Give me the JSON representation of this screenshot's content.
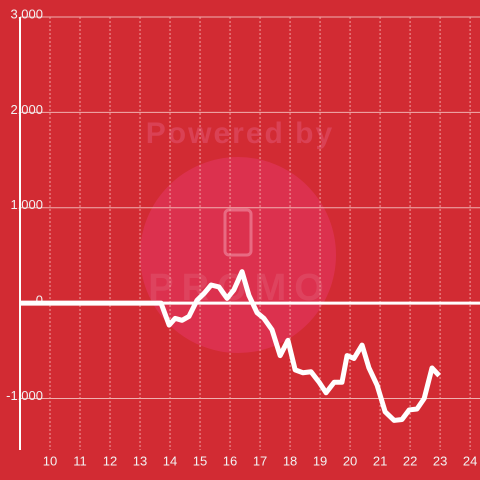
{
  "chart_data": {
    "type": "line",
    "watermark": "Powered by",
    "watermark_logo": "PROMO",
    "x": [
      9,
      13.7,
      13.97,
      14.17,
      14.4,
      14.63,
      14.9,
      15.13,
      15.37,
      15.63,
      15.9,
      16.13,
      16.4,
      16.63,
      16.9,
      17.13,
      17.4,
      17.67,
      17.93,
      18.17,
      18.43,
      18.7,
      18.97,
      19.2,
      19.47,
      19.73,
      19.9,
      20.13,
      20.4,
      20.63,
      20.9,
      21.17,
      21.47,
      21.73,
      21.97,
      22.23,
      22.47,
      22.73,
      22.97
    ],
    "values": [
      0,
      0,
      -230,
      -160,
      -180,
      -140,
      30,
      100,
      190,
      170,
      50,
      140,
      330,
      80,
      -100,
      -160,
      -280,
      -550,
      -390,
      -700,
      -730,
      -720,
      -830,
      -940,
      -830,
      -830,
      -550,
      -580,
      -440,
      -680,
      -860,
      -1140,
      -1230,
      -1220,
      -1120,
      -1110,
      -1000,
      -680,
      -760
    ],
    "color": "#ffffff",
    "xlim": [
      9,
      24.33
    ],
    "xticks": [
      10,
      11,
      12,
      13,
      14,
      15,
      16,
      17,
      18,
      19,
      20,
      21,
      22,
      23,
      24
    ],
    "ylim": [
      -1540,
      3000
    ],
    "yticks": [
      {
        "value": 3000,
        "label": "3,000"
      },
      {
        "value": 2000,
        "label": "2,000"
      },
      {
        "value": 1000,
        "label": "1,000"
      },
      0,
      {
        "value": -1000,
        "label": "-1,000"
      }
    ],
    "grid": true
  }
}
